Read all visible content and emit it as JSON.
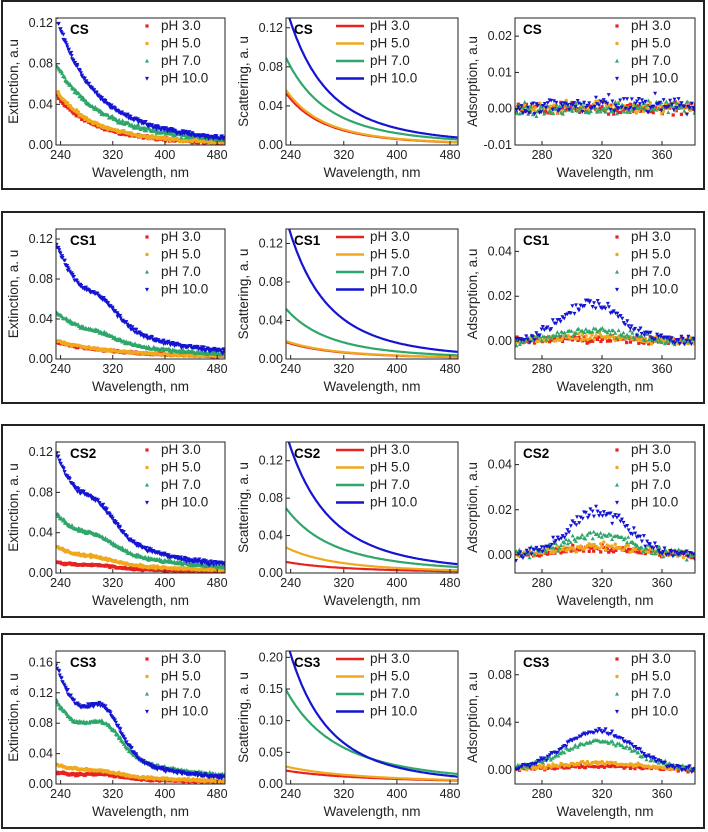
{
  "colors": {
    "ph3": "#e8221f",
    "ph5": "#f0a81c",
    "ph7": "#2fa66a",
    "ph10": "#1414d2"
  },
  "legend": [
    "pH 3.0",
    "pH 5.0",
    "pH 7.0",
    "pH 10.0"
  ],
  "rows": [
    {
      "name": "CS",
      "ext_xlim": [
        233,
        492
      ],
      "ext_xticks": [
        240,
        320,
        400,
        480
      ],
      "ext_ylim": [
        0,
        0.125
      ],
      "ext_yticks": [
        "0.00",
        "0.04",
        "0.08",
        "0.12"
      ],
      "sca_ylim": [
        0,
        0.13
      ],
      "sca_yticks": [
        "0.00",
        "0.04",
        "0.08",
        "0.12"
      ],
      "ads_xlim": [
        262,
        382
      ],
      "ads_xticks": [
        280,
        320,
        360
      ],
      "ads_ylim": [
        -0.01,
        0.025
      ],
      "ads_yticks": [
        "-0.01",
        "0.00",
        "0.01",
        "0.02"
      ]
    },
    {
      "name": "CS1",
      "ext_xlim": [
        233,
        492
      ],
      "ext_xticks": [
        240,
        320,
        400,
        480
      ],
      "ext_ylim": [
        0,
        0.13
      ],
      "ext_yticks": [
        "0.00",
        "0.04",
        "0.08",
        "0.12"
      ],
      "sca_ylim": [
        0,
        0.135
      ],
      "sca_yticks": [
        "0.00",
        "0.04",
        "0.08",
        "0.12"
      ],
      "ads_xlim": [
        262,
        382
      ],
      "ads_xticks": [
        280,
        320,
        360
      ],
      "ads_ylim": [
        -0.008,
        0.05
      ],
      "ads_yticks": [
        "0.00",
        "0.02",
        "0.04"
      ]
    },
    {
      "name": "CS2",
      "ext_xlim": [
        233,
        492
      ],
      "ext_xticks": [
        240,
        320,
        400,
        480
      ],
      "ext_ylim": [
        0,
        0.13
      ],
      "ext_yticks": [
        "0.00",
        "0.04",
        "0.08",
        "0.12"
      ],
      "sca_ylim": [
        0,
        0.14
      ],
      "sca_yticks": [
        "0.00",
        "0.04",
        "0.08",
        "0.12"
      ],
      "ads_xlim": [
        262,
        382
      ],
      "ads_xticks": [
        280,
        320,
        360
      ],
      "ads_ylim": [
        -0.008,
        0.05
      ],
      "ads_yticks": [
        "0.00",
        "0.02",
        "0.04"
      ]
    },
    {
      "name": "CS3",
      "ext_xlim": [
        233,
        492
      ],
      "ext_xticks": [
        240,
        320,
        400,
        480
      ],
      "ext_ylim": [
        0,
        0.175
      ],
      "ext_yticks": [
        "0.00",
        "0.04",
        "0.08",
        "0.12",
        "0.16"
      ],
      "sca_ylim": [
        0,
        0.21
      ],
      "sca_yticks": [
        "0.00",
        "0.05",
        "0.10",
        "0.15",
        "0.20"
      ],
      "ads_xlim": [
        262,
        382
      ],
      "ads_xticks": [
        280,
        320,
        360
      ],
      "ads_ylim": [
        -0.012,
        0.1
      ],
      "ads_yticks": [
        "0.00",
        "0.04",
        "0.08"
      ]
    }
  ],
  "chart_data": [
    {
      "type": "scatter",
      "title": "CS",
      "xlabel": "Wavelength, nm",
      "ylabel": "Extinction, a.u",
      "xlim": [
        233,
        492
      ],
      "ylim": [
        0,
        0.125
      ],
      "series": [
        {
          "name": "pH 3.0",
          "model": "power",
          "a": 0.044,
          "n": 4.0,
          "noise": 0.0012
        },
        {
          "name": "pH 5.0",
          "model": "power",
          "a": 0.048,
          "n": 4.0,
          "noise": 0.0012
        },
        {
          "name": "pH 7.0",
          "model": "power",
          "a": 0.072,
          "n": 3.5,
          "noise": 0.0015
        },
        {
          "name": "pH 10.0",
          "model": "power",
          "a": 0.114,
          "n": 3.9,
          "noise": 0.0015
        }
      ]
    },
    {
      "type": "line",
      "title": "CS",
      "xlabel": "Wavelength, nm",
      "ylabel": "Scattering, a. u",
      "xlim": [
        233,
        492
      ],
      "ylim": [
        0,
        0.13
      ],
      "series": [
        {
          "name": "pH 3.0",
          "a": 0.047,
          "n": 4.0
        },
        {
          "name": "pH 5.0",
          "a": 0.05,
          "n": 4.0
        },
        {
          "name": "pH 7.0",
          "a": 0.08,
          "n": 3.7
        },
        {
          "name": "pH 10.0",
          "a": 0.126,
          "n": 3.9
        }
      ]
    },
    {
      "type": "scatter",
      "title": "CS",
      "xlabel": "Wavelength, nm",
      "ylabel": "Adsorption, a.u",
      "xlim": [
        262,
        382
      ],
      "ylim": [
        -0.01,
        0.025
      ],
      "series": [
        {
          "name": "pH 3.0",
          "model": "gauss",
          "amp": 0.0,
          "c": 310,
          "w": 30,
          "noise": 0.0012
        },
        {
          "name": "pH 5.0",
          "model": "gauss",
          "amp": 0.0005,
          "c": 310,
          "w": 30,
          "noise": 0.0012
        },
        {
          "name": "pH 7.0",
          "model": "gauss",
          "amp": 0.0006,
          "c": 330,
          "w": 40,
          "noise": 0.0015
        },
        {
          "name": "pH 10.0",
          "model": "gauss",
          "amp": 0.0012,
          "c": 350,
          "w": 50,
          "noise": 0.0018
        }
      ]
    },
    {
      "type": "scatter",
      "title": "CS1",
      "xlabel": "Wavelength, nm",
      "ylabel": "Extinction, a. u",
      "xlim": [
        233,
        492
      ],
      "ylim": [
        0,
        0.13
      ],
      "series": [
        {
          "name": "pH 3.0",
          "model": "power",
          "a": 0.016,
          "n": 2.5,
          "noise": 0.0008
        },
        {
          "name": "pH 5.0",
          "model": "power",
          "a": 0.017,
          "n": 2.5,
          "noise": 0.0008
        },
        {
          "name": "pH 7.0",
          "model": "powergauss",
          "a": 0.043,
          "n": 3.0,
          "amp": 0.005,
          "c": 300,
          "w": 25,
          "noise": 0.0012
        },
        {
          "name": "pH 10.0",
          "model": "powergauss",
          "a": 0.105,
          "n": 3.6,
          "amp": 0.016,
          "c": 305,
          "w": 25,
          "noise": 0.0015
        }
      ]
    },
    {
      "type": "line",
      "title": "CS1",
      "xlabel": "Wavelength, nm",
      "ylabel": "Scattering, a. u",
      "xlim": [
        233,
        492
      ],
      "ylim": [
        0,
        0.135
      ],
      "series": [
        {
          "name": "pH 3.0",
          "a": 0.016,
          "n": 3.0
        },
        {
          "name": "pH 5.0",
          "a": 0.017,
          "n": 3.0
        },
        {
          "name": "pH 7.0",
          "a": 0.047,
          "n": 3.5
        },
        {
          "name": "pH 10.0",
          "a": 0.13,
          "n": 4.0
        }
      ]
    },
    {
      "type": "scatter",
      "title": "CS1",
      "xlabel": "Wavelength, nm",
      "ylabel": "Adsorption, a.u",
      "xlim": [
        262,
        382
      ],
      "ylim": [
        -0.008,
        0.05
      ],
      "series": [
        {
          "name": "pH 3.0",
          "model": "gauss",
          "amp": 0.001,
          "c": 315,
          "w": 25,
          "noise": 0.0012
        },
        {
          "name": "pH 5.0",
          "model": "gauss",
          "amp": 0.002,
          "c": 315,
          "w": 25,
          "noise": 0.0012
        },
        {
          "name": "pH 7.0",
          "model": "gauss",
          "amp": 0.005,
          "c": 313,
          "w": 22,
          "noise": 0.0015
        },
        {
          "name": "pH 10.0",
          "model": "gauss",
          "amp": 0.017,
          "c": 313,
          "w": 20,
          "noise": 0.0018
        }
      ]
    },
    {
      "type": "scatter",
      "title": "CS2",
      "xlabel": "Wavelength, nm",
      "ylabel": "Extinction, a. u",
      "xlim": [
        233,
        492
      ],
      "ylim": [
        0,
        0.13
      ],
      "series": [
        {
          "name": "pH 3.0",
          "model": "powergauss",
          "a": 0.01,
          "n": 2.5,
          "amp": 0.002,
          "c": 300,
          "w": 25,
          "noise": 0.0008
        },
        {
          "name": "pH 5.0",
          "model": "powergauss",
          "a": 0.024,
          "n": 3.0,
          "amp": 0.003,
          "c": 300,
          "w": 25,
          "noise": 0.0009
        },
        {
          "name": "pH 7.0",
          "model": "powergauss",
          "a": 0.054,
          "n": 3.0,
          "amp": 0.009,
          "c": 300,
          "w": 25,
          "noise": 0.0012
        },
        {
          "name": "pH 10.0",
          "model": "powergauss",
          "a": 0.108,
          "n": 3.5,
          "amp": 0.02,
          "c": 300,
          "w": 25,
          "noise": 0.0015
        }
      ]
    },
    {
      "type": "line",
      "title": "CS2",
      "xlabel": "Wavelength, nm",
      "ylabel": "Scattering, a. u",
      "xlim": [
        233,
        492
      ],
      "ylim": [
        0,
        0.14
      ],
      "series": [
        {
          "name": "pH 3.0",
          "a": 0.011,
          "n": 2.5
        },
        {
          "name": "pH 5.0",
          "a": 0.025,
          "n": 3.0
        },
        {
          "name": "pH 7.0",
          "a": 0.063,
          "n": 3.2
        },
        {
          "name": "pH 10.0",
          "a": 0.134,
          "n": 3.7
        }
      ]
    },
    {
      "type": "scatter",
      "title": "CS2",
      "xlabel": "Wavelength, nm",
      "ylabel": "Adsorption, a.u",
      "xlim": [
        262,
        382
      ],
      "ylim": [
        -0.008,
        0.05
      ],
      "series": [
        {
          "name": "pH 3.0",
          "model": "gauss",
          "amp": 0.003,
          "c": 318,
          "w": 25,
          "noise": 0.0012
        },
        {
          "name": "pH 5.0",
          "model": "gauss",
          "amp": 0.004,
          "c": 318,
          "w": 25,
          "noise": 0.0012
        },
        {
          "name": "pH 7.0",
          "model": "gauss",
          "amp": 0.009,
          "c": 318,
          "w": 22,
          "noise": 0.0015
        },
        {
          "name": "pH 10.0",
          "model": "gauss",
          "amp": 0.019,
          "c": 318,
          "w": 20,
          "noise": 0.0018
        }
      ]
    },
    {
      "type": "scatter",
      "title": "CS3",
      "xlabel": "Wavelength, nm",
      "ylabel": "Extinction, a. u",
      "xlim": [
        233,
        492
      ],
      "ylim": [
        0,
        0.175
      ],
      "series": [
        {
          "name": "pH 3.0",
          "model": "powergauss",
          "a": 0.014,
          "n": 2.0,
          "amp": 0.004,
          "c": 305,
          "w": 25,
          "noise": 0.0012
        },
        {
          "name": "pH 5.0",
          "model": "powergauss",
          "a": 0.024,
          "n": 2.5,
          "amp": 0.004,
          "c": 305,
          "w": 25,
          "noise": 0.0012
        },
        {
          "name": "pH 7.0",
          "model": "powergauss",
          "a": 0.1,
          "n": 3.0,
          "amp": 0.033,
          "c": 308,
          "w": 25,
          "noise": 0.0015
        },
        {
          "name": "pH 10.0",
          "model": "powergauss",
          "a": 0.14,
          "n": 3.9,
          "amp": 0.048,
          "c": 308,
          "w": 25,
          "noise": 0.0018
        }
      ]
    },
    {
      "type": "line",
      "title": "CS3",
      "xlabel": "Wavelength, nm",
      "ylabel": "Scattering, a. u",
      "xlim": [
        233,
        492
      ],
      "ylim": [
        0,
        0.21
      ],
      "series": [
        {
          "name": "pH 3.0",
          "a": 0.02,
          "n": 1.8
        },
        {
          "name": "pH 5.0",
          "a": 0.026,
          "n": 2.0
        },
        {
          "name": "pH 7.0",
          "a": 0.136,
          "n": 3.0
        },
        {
          "name": "pH 10.0",
          "a": 0.205,
          "n": 4.0
        }
      ]
    },
    {
      "type": "scatter",
      "title": "CS3",
      "xlabel": "Wavelength, nm",
      "ylabel": "Adsorption, a.u",
      "xlim": [
        262,
        382
      ],
      "ylim": [
        -0.012,
        0.1
      ],
      "series": [
        {
          "name": "pH 3.0",
          "model": "gauss",
          "amp": 0.003,
          "c": 315,
          "w": 30,
          "noise": 0.0012
        },
        {
          "name": "pH 5.0",
          "model": "gauss",
          "amp": 0.006,
          "c": 315,
          "w": 28,
          "noise": 0.0012
        },
        {
          "name": "pH 7.0",
          "model": "gauss",
          "amp": 0.024,
          "c": 318,
          "w": 25,
          "noise": 0.0015
        },
        {
          "name": "pH 10.0",
          "model": "gauss",
          "amp": 0.033,
          "c": 318,
          "w": 23,
          "noise": 0.0018
        }
      ]
    }
  ]
}
